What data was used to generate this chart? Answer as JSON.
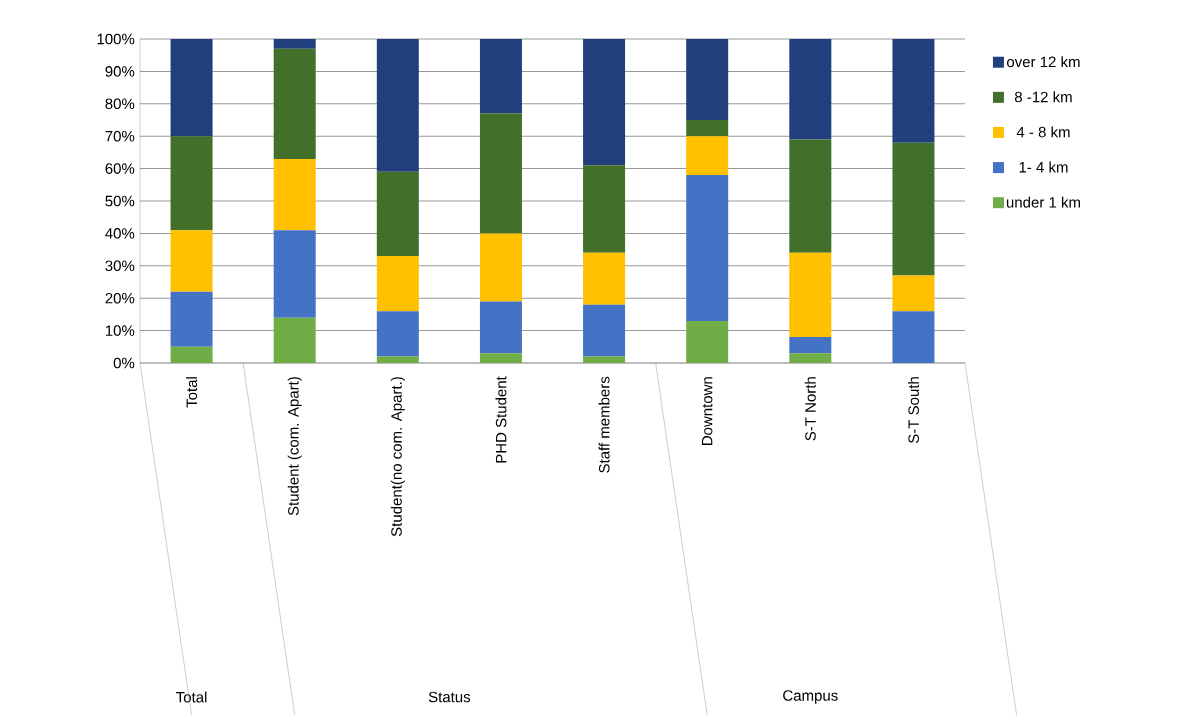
{
  "chart_data": {
    "type": "bar",
    "stacked": true,
    "categories": [
      "Total",
      "Student (com. Apart)",
      "Student(no com. Apart.)",
      "PHD Student",
      "Staff members",
      "Downtown",
      "S-T North",
      "S-T South"
    ],
    "series": [
      {
        "name": "under   1 km",
        "color": "#70ad47",
        "values": [
          5,
          14,
          2,
          3,
          2,
          13,
          3,
          0
        ]
      },
      {
        "name": "1- 4 km",
        "color": "#4472c4",
        "values": [
          17,
          27,
          14,
          16,
          16,
          45,
          5,
          16
        ]
      },
      {
        "name": "4 - 8 km",
        "color": "#ffc000",
        "values": [
          19,
          22,
          17,
          21,
          16,
          12,
          26,
          11
        ]
      },
      {
        "name": "8 -12 km",
        "color": "#426f2a",
        "values": [
          29,
          34,
          26,
          37,
          27,
          5,
          35,
          41
        ]
      },
      {
        "name": "over 12 km",
        "color": "#203f7c",
        "values": [
          30,
          3,
          41,
          23,
          39,
          25,
          31,
          32
        ]
      }
    ],
    "ylim": [
      0,
      100
    ],
    "yticks": [
      {
        "value": 0,
        "label": "0%"
      },
      {
        "value": 10,
        "label": "10%"
      },
      {
        "value": 20,
        "label": "20%"
      },
      {
        "value": 30,
        "label": "30%"
      },
      {
        "value": 40,
        "label": "40%"
      },
      {
        "value": 50,
        "label": "50%"
      },
      {
        "value": 60,
        "label": "60%"
      },
      {
        "value": 70,
        "label": "70%"
      },
      {
        "value": 80,
        "label": "80%"
      },
      {
        "value": 90,
        "label": "90%"
      },
      {
        "value": 100,
        "label": "100%"
      }
    ],
    "grid": "y",
    "legend": "right",
    "annotations": [
      "Total",
      "Status",
      "Campus"
    ]
  }
}
